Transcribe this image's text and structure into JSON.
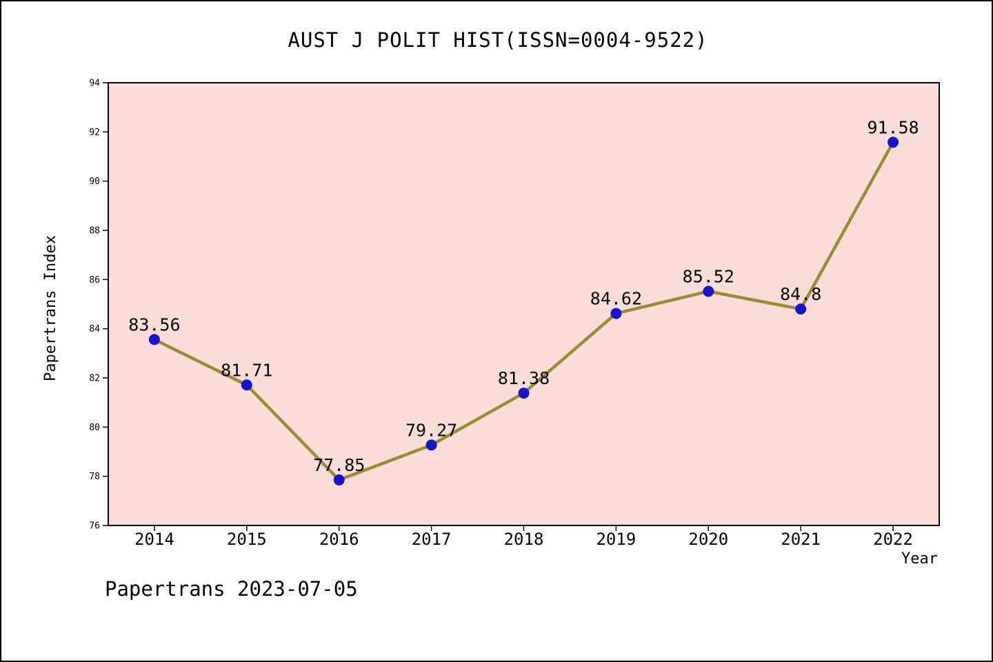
{
  "chart_data": {
    "type": "line",
    "title": "AUST J POLIT HIST(ISSN=0004-9522)",
    "xlabel": "Year",
    "ylabel": "Papertrans Index",
    "x": [
      2014,
      2015,
      2016,
      2017,
      2018,
      2019,
      2020,
      2021,
      2022
    ],
    "values": [
      83.56,
      81.71,
      77.85,
      79.27,
      81.38,
      84.62,
      85.52,
      84.8,
      91.58
    ],
    "point_labels": [
      "83.56",
      "81.71",
      "77.85",
      "79.27",
      "81.38",
      "84.62",
      "85.52",
      "84.8",
      "91.58"
    ],
    "xticks": [
      2014,
      2015,
      2016,
      2017,
      2018,
      2019,
      2020,
      2021,
      2022
    ],
    "yticks": [
      76,
      78,
      80,
      82,
      84,
      86,
      88,
      90,
      92,
      94
    ],
    "xlim": [
      2013.5,
      2022.5
    ],
    "ylim": [
      76,
      94
    ],
    "grid": false,
    "legend": null,
    "annotation": "Papertrans 2023-07-05",
    "colors": {
      "line": "#9A8C33",
      "marker": "#1515CD",
      "plot_background": "#FADCD9",
      "axis": "#000000",
      "text": "#000000",
      "figure_background": "#FFFFFF"
    }
  }
}
